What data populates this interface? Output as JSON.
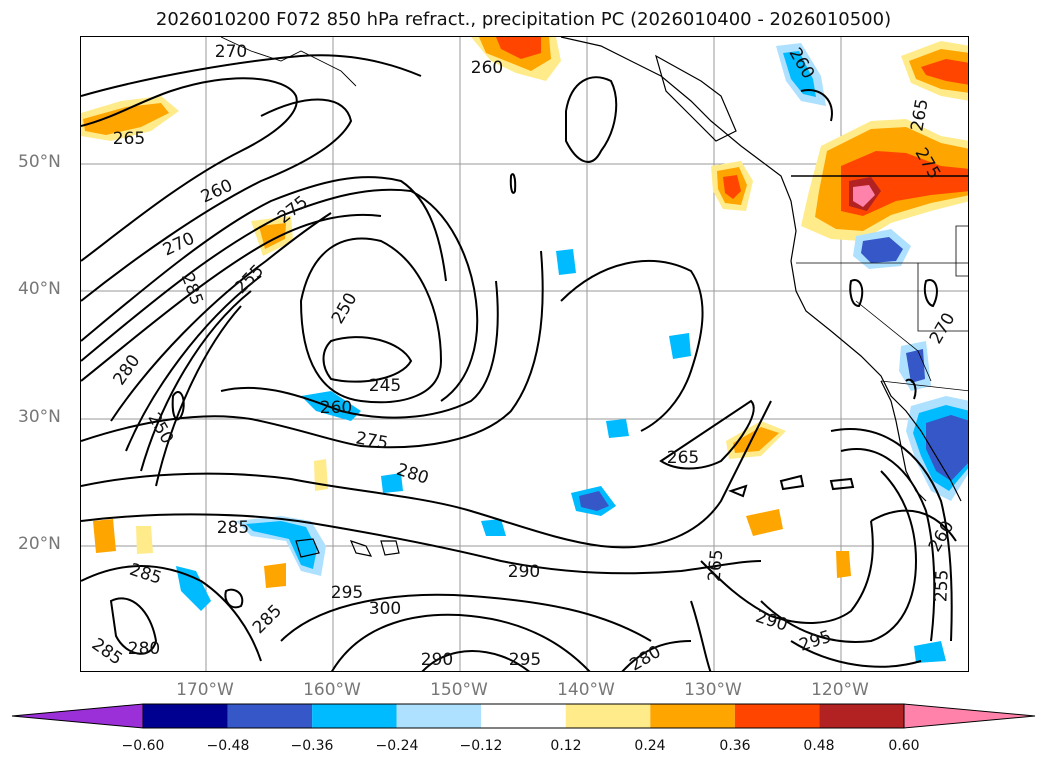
{
  "title": "2026010200 F072 850 hPa refract., precipitation PC (2026010400 - 2026010500)",
  "lat_labels": [
    "50°N",
    "40°N",
    "30°N",
    "20°N"
  ],
  "lon_labels": [
    "170°W",
    "160°W",
    "150°W",
    "140°W",
    "130°W",
    "120°W"
  ],
  "contour_labels": [
    "270",
    "260",
    "265",
    "260",
    "270",
    "275",
    "285",
    "255",
    "250",
    "280",
    "245",
    "260",
    "250",
    "275",
    "280",
    "285",
    "265",
    "285",
    "295",
    "300",
    "290",
    "295",
    "290",
    "285",
    "280",
    "285",
    "295",
    "280",
    "290",
    "260",
    "255",
    "265",
    "265",
    "275",
    "270",
    "260"
  ],
  "colorbar": {
    "colors": [
      "#9b30d9",
      "#000090",
      "#3557c8",
      "#00bbff",
      "#aee0ff",
      "#ffffff",
      "#ffeb8a",
      "#ffa500",
      "#ff4500",
      "#b22222",
      "#ff82ab"
    ],
    "ticks": [
      "−0.60",
      "−0.48",
      "−0.36",
      "−0.24",
      "−0.12",
      "0.12",
      "0.24",
      "0.36",
      "0.48",
      "0.60"
    ]
  }
}
